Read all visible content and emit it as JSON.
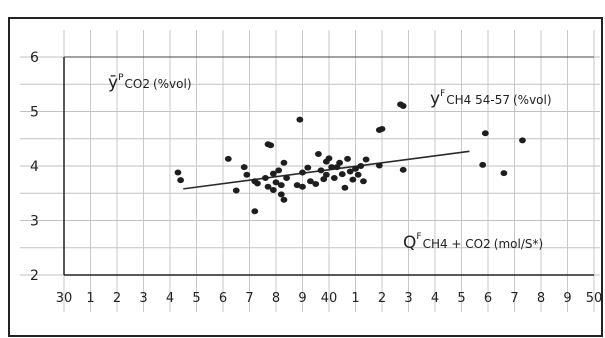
{
  "chart_data": {
    "type": "scatter",
    "title": "",
    "ylabel": "ȳᴾCO2 (%vol)",
    "ylabel_main": "ȳ",
    "ylabel_sup": "P",
    "ylabel_sub": "CO2",
    "ylabel_unit": "(%vol)",
    "annotation_right": {
      "main": "y",
      "sup": "F",
      "sub": "CH4 54-57",
      "unit": "(%vol)"
    },
    "xlabel": {
      "main": "Q",
      "sup": "F",
      "sub": "CH4 + CO2",
      "unit": "(mol/S*)"
    },
    "xlim": [
      30,
      50
    ],
    "ylim": [
      2,
      6
    ],
    "grid": true,
    "x_ticks": [
      {
        "value": 30,
        "label": "30"
      },
      {
        "value": 31,
        "label": "1"
      },
      {
        "value": 32,
        "label": "2"
      },
      {
        "value": 33,
        "label": "3"
      },
      {
        "value": 34,
        "label": "4"
      },
      {
        "value": 35,
        "label": "5"
      },
      {
        "value": 36,
        "label": "6"
      },
      {
        "value": 37,
        "label": "7"
      },
      {
        "value": 38,
        "label": "8"
      },
      {
        "value": 39,
        "label": "9"
      },
      {
        "value": 40,
        "label": "40"
      },
      {
        "value": 41,
        "label": "1"
      },
      {
        "value": 42,
        "label": "2"
      },
      {
        "value": 43,
        "label": "3"
      },
      {
        "value": 44,
        "label": "4"
      },
      {
        "value": 45,
        "label": "5"
      },
      {
        "value": 46,
        "label": "6"
      },
      {
        "value": 47,
        "label": "7"
      },
      {
        "value": 48,
        "label": "8"
      },
      {
        "value": 49,
        "label": "9"
      },
      {
        "value": 50,
        "label": "50"
      }
    ],
    "y_ticks": [
      {
        "value": 2,
        "label": "2"
      },
      {
        "value": 3,
        "label": "3"
      },
      {
        "value": 4,
        "label": "4"
      },
      {
        "value": 5,
        "label": "5"
      },
      {
        "value": 6,
        "label": "6"
      }
    ],
    "points": [
      [
        34.3,
        3.88
      ],
      [
        34.4,
        3.74
      ],
      [
        36.2,
        4.13
      ],
      [
        36.5,
        3.55
      ],
      [
        36.8,
        3.98
      ],
      [
        36.9,
        3.84
      ],
      [
        37.2,
        3.72
      ],
      [
        37.3,
        3.68
      ],
      [
        37.2,
        3.17
      ],
      [
        37.6,
        3.78
      ],
      [
        37.7,
        3.62
      ],
      [
        37.7,
        4.4
      ],
      [
        37.8,
        4.38
      ],
      [
        37.9,
        3.86
      ],
      [
        37.9,
        3.56
      ],
      [
        38.0,
        3.7
      ],
      [
        38.1,
        3.92
      ],
      [
        38.2,
        3.65
      ],
      [
        38.2,
        3.48
      ],
      [
        38.3,
        3.38
      ],
      [
        38.3,
        4.06
      ],
      [
        38.4,
        3.78
      ],
      [
        38.8,
        3.65
      ],
      [
        38.9,
        4.85
      ],
      [
        39.0,
        3.88
      ],
      [
        39.0,
        3.62
      ],
      [
        39.2,
        3.97
      ],
      [
        39.3,
        3.72
      ],
      [
        39.5,
        3.67
      ],
      [
        39.6,
        4.22
      ],
      [
        39.7,
        3.92
      ],
      [
        39.8,
        3.76
      ],
      [
        39.9,
        3.84
      ],
      [
        39.9,
        4.08
      ],
      [
        40.0,
        4.14
      ],
      [
        40.1,
        3.98
      ],
      [
        40.2,
        3.78
      ],
      [
        40.3,
        3.98
      ],
      [
        40.4,
        4.06
      ],
      [
        40.5,
        3.85
      ],
      [
        40.6,
        3.6
      ],
      [
        40.7,
        4.13
      ],
      [
        40.8,
        3.9
      ],
      [
        40.9,
        3.75
      ],
      [
        41.0,
        3.95
      ],
      [
        41.1,
        3.84
      ],
      [
        41.2,
        4.0
      ],
      [
        41.3,
        3.72
      ],
      [
        41.4,
        4.12
      ],
      [
        41.9,
        4.01
      ],
      [
        41.9,
        4.66
      ],
      [
        42.0,
        4.68
      ],
      [
        42.7,
        5.13
      ],
      [
        42.8,
        5.1
      ],
      [
        42.8,
        3.93
      ],
      [
        45.8,
        4.02
      ],
      [
        45.9,
        4.6
      ],
      [
        46.6,
        3.87
      ],
      [
        47.3,
        4.47
      ]
    ],
    "fit_line": {
      "x": [
        34.5,
        45.3
      ],
      "y": [
        3.58,
        4.27
      ]
    }
  }
}
